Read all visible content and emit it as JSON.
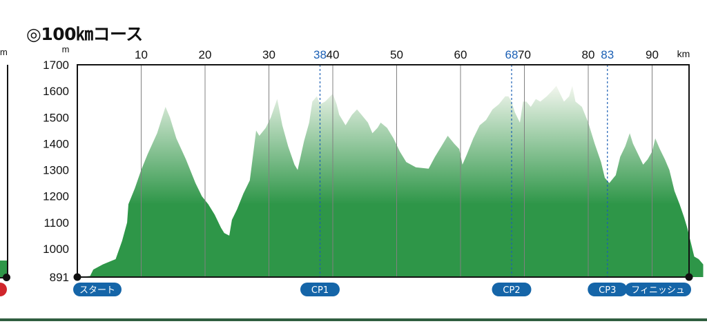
{
  "title": "◎100㎞コース",
  "chart_data": {
    "type": "area",
    "title": "◎100㎞コース",
    "x_unit": "km",
    "y_unit": "m",
    "xlim": [
      0,
      98
    ],
    "ylim": [
      891,
      1700
    ],
    "y_ticks": [
      891,
      1000,
      1100,
      1200,
      1300,
      1400,
      1500,
      1600,
      1700
    ],
    "x_ticks": [
      10,
      20,
      30,
      40,
      50,
      60,
      70,
      80,
      90
    ],
    "checkpoint_ticks": [
      38,
      68,
      83
    ],
    "colors": {
      "fill_dark": "#2e9648",
      "fill_light": "#f2f6ee",
      "gridline": "#808080",
      "checkpoint_line": "#1a5fb4",
      "checkpoint_text": "#1a5fb4",
      "badge": "#1565a8"
    },
    "markers": [
      {
        "label": "スタート",
        "km": 0
      },
      {
        "label": "CP1",
        "km": 38
      },
      {
        "label": "CP2",
        "km": 68
      },
      {
        "label": "CP3",
        "km": 83
      },
      {
        "label": "フィニッシュ",
        "km": 98
      }
    ],
    "profile": [
      [
        0,
        891
      ],
      [
        2,
        895
      ],
      [
        2.5,
        920
      ],
      [
        4,
        940
      ],
      [
        5.5,
        955
      ],
      [
        6,
        960
      ],
      [
        7,
        1030
      ],
      [
        7.8,
        1100
      ],
      [
        8,
        1170
      ],
      [
        9,
        1230
      ],
      [
        10,
        1300
      ],
      [
        11,
        1360
      ],
      [
        12.5,
        1440
      ],
      [
        13.8,
        1540
      ],
      [
        14.5,
        1500
      ],
      [
        15.5,
        1420
      ],
      [
        17,
        1340
      ],
      [
        18.5,
        1250
      ],
      [
        19.5,
        1200
      ],
      [
        20.5,
        1170
      ],
      [
        21.5,
        1130
      ],
      [
        22.5,
        1080
      ],
      [
        23,
        1060
      ],
      [
        23.8,
        1050
      ],
      [
        24.2,
        1110
      ],
      [
        25,
        1150
      ],
      [
        26,
        1210
      ],
      [
        27,
        1260
      ],
      [
        28,
        1450
      ],
      [
        28.5,
        1430
      ],
      [
        29.5,
        1460
      ],
      [
        30.3,
        1500
      ],
      [
        31.3,
        1570
      ],
      [
        32.1,
        1470
      ],
      [
        33,
        1390
      ],
      [
        34,
        1320
      ],
      [
        34.5,
        1300
      ],
      [
        35.5,
        1410
      ],
      [
        36.3,
        1480
      ],
      [
        36.8,
        1560
      ],
      [
        37.5,
        1580
      ],
      [
        38,
        1550
      ],
      [
        38.8,
        1560
      ],
      [
        40,
        1590
      ],
      [
        40.6,
        1550
      ],
      [
        41,
        1510
      ],
      [
        42,
        1470
      ],
      [
        43,
        1510
      ],
      [
        43.8,
        1530
      ],
      [
        44.5,
        1510
      ],
      [
        45.5,
        1480
      ],
      [
        46.2,
        1440
      ],
      [
        47,
        1460
      ],
      [
        47.5,
        1480
      ],
      [
        48.5,
        1460
      ],
      [
        49.5,
        1420
      ],
      [
        50.5,
        1370
      ],
      [
        51.5,
        1330
      ],
      [
        53,
        1310
      ],
      [
        55,
        1305
      ],
      [
        56,
        1350
      ],
      [
        57,
        1390
      ],
      [
        58,
        1430
      ],
      [
        59,
        1400
      ],
      [
        59.8,
        1380
      ],
      [
        60.3,
        1320
      ],
      [
        61,
        1360
      ],
      [
        62,
        1420
      ],
      [
        63,
        1470
      ],
      [
        64,
        1490
      ],
      [
        65,
        1530
      ],
      [
        66,
        1550
      ],
      [
        67,
        1580
      ],
      [
        67.5,
        1580
      ],
      [
        68,
        1560
      ],
      [
        68.5,
        1520
      ],
      [
        69.3,
        1480
      ],
      [
        69.8,
        1560
      ],
      [
        70.3,
        1560
      ],
      [
        71,
        1540
      ],
      [
        71.8,
        1570
      ],
      [
        72.5,
        1560
      ],
      [
        73.5,
        1580
      ],
      [
        74.3,
        1600
      ],
      [
        75,
        1620
      ],
      [
        75.6,
        1590
      ],
      [
        76.2,
        1560
      ],
      [
        77,
        1580
      ],
      [
        77.5,
        1620
      ],
      [
        78,
        1560
      ],
      [
        79,
        1540
      ],
      [
        80,
        1480
      ],
      [
        81,
        1400
      ],
      [
        82,
        1330
      ],
      [
        82.6,
        1270
      ],
      [
        83.3,
        1250
      ],
      [
        84.3,
        1280
      ],
      [
        85,
        1350
      ],
      [
        85.8,
        1390
      ],
      [
        86.5,
        1440
      ],
      [
        87,
        1400
      ],
      [
        88,
        1350
      ],
      [
        88.6,
        1320
      ],
      [
        89.3,
        1340
      ],
      [
        90,
        1370
      ],
      [
        90.5,
        1420
      ],
      [
        91.2,
        1380
      ],
      [
        92,
        1340
      ],
      [
        92.7,
        1300
      ],
      [
        93.5,
        1220
      ],
      [
        94.3,
        1170
      ],
      [
        95,
        1120
      ],
      [
        95.5,
        1080
      ],
      [
        96,
        1030
      ],
      [
        96.6,
        970
      ],
      [
        97.3,
        960
      ],
      [
        98,
        940
      ],
      [
        98,
        891
      ]
    ]
  },
  "left_fragment": {
    "unit_text": "m"
  }
}
